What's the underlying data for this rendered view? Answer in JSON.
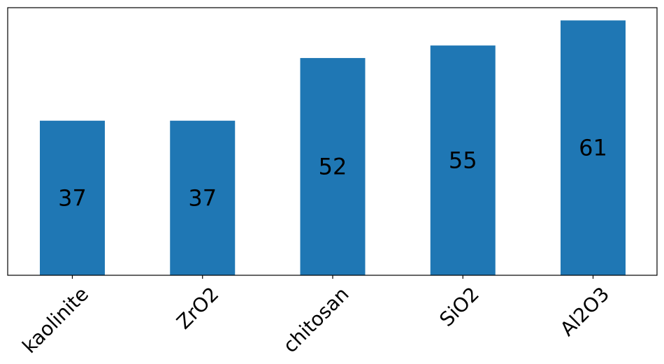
{
  "chart_data": {
    "type": "bar",
    "categories": [
      "kaolinite",
      "ZrO2",
      "chitosan",
      "SiO2",
      "Al2O3"
    ],
    "values": [
      37,
      37,
      52,
      55,
      61
    ],
    "data_labels": [
      "37",
      "37",
      "52",
      "55",
      "61"
    ],
    "title": "",
    "xlabel": "",
    "ylabel": "",
    "ylim": [
      0,
      64.05
    ],
    "y_ticks_visible": false,
    "grid": false,
    "legend": "none",
    "bar_color": "#1f77b4",
    "label_color": "#000000",
    "axes_color": "#000000"
  }
}
